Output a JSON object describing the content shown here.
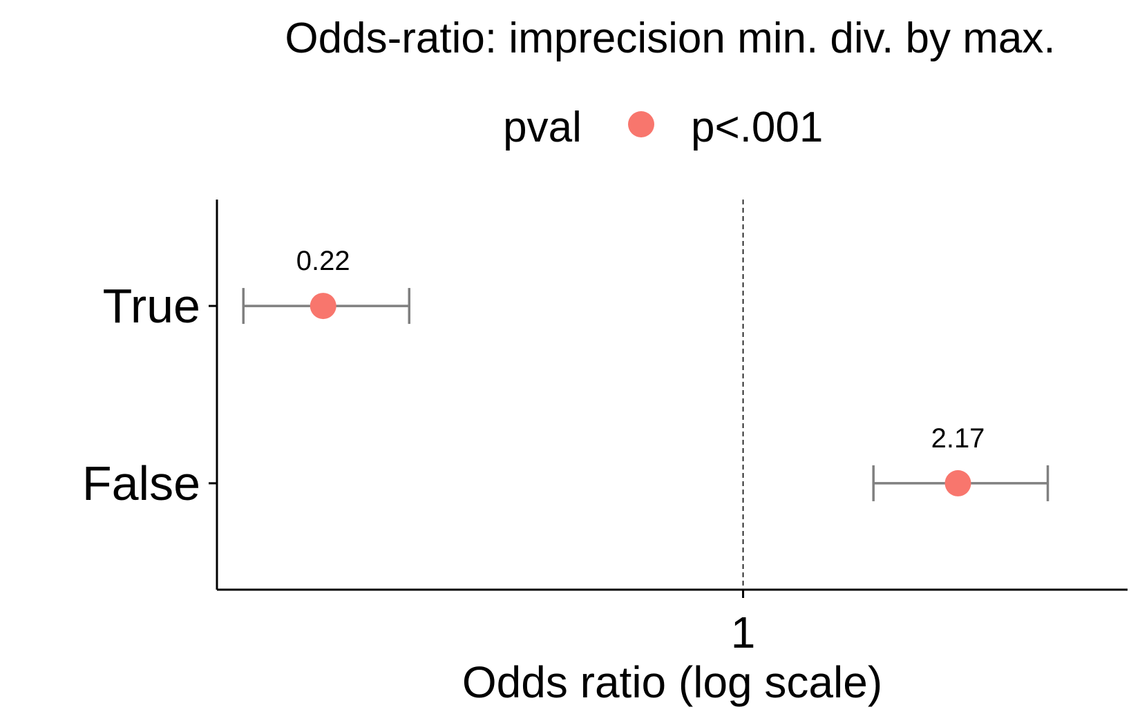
{
  "chart_data": {
    "type": "scatter",
    "title": "Odds-ratio: imprecision min. div. by max.",
    "xlabel": "Odds ratio (log scale)",
    "ylabel": "",
    "x_scale": "log",
    "xlim": [
      0.15,
      4.0
    ],
    "x_ticks": [
      {
        "value": 1,
        "label": "1"
      }
    ],
    "reference_line": {
      "x": 1,
      "style": "dashed"
    },
    "categories": [
      "True",
      "False"
    ],
    "legend": {
      "title": "pval",
      "position": "top",
      "entries": [
        {
          "label": "p<.001",
          "color": "#F8766D"
        }
      ]
    },
    "series": [
      {
        "name": "p<.001",
        "color": "#F8766D",
        "points": [
          {
            "category": "True",
            "estimate": 0.22,
            "ci_low": 0.165,
            "ci_high": 0.3,
            "label": "0.22"
          },
          {
            "category": "False",
            "estimate": 2.17,
            "ci_low": 1.6,
            "ci_high": 3.0,
            "label": "2.17"
          }
        ]
      }
    ],
    "errorbar_color": "#808080",
    "grid": false
  }
}
